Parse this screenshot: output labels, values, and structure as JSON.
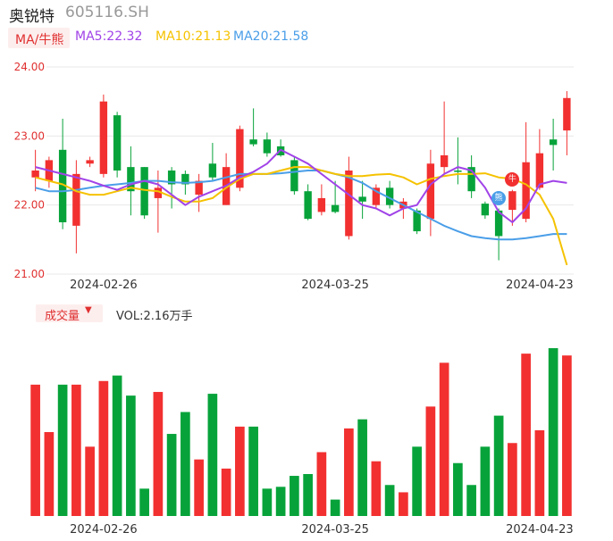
{
  "header": {
    "name": "奥锐特",
    "code": "605116.SH"
  },
  "ma_legend": {
    "button_label": "MA/牛熊",
    "ma5": "MA5:22.32",
    "ma10": "MA10:21.13",
    "ma20": "MA20:21.58"
  },
  "volume_legend": {
    "button_label": "成交量",
    "arrow": "▼",
    "vol_text": "VOL:2.16万手"
  },
  "markers": {
    "bull": "牛",
    "bear": "熊"
  },
  "colors": {
    "up": "#f23030",
    "down": "#07a33a",
    "ma5": "#a143e8",
    "ma10": "#f5c200",
    "ma20": "#4a9ee8",
    "label": "#e03030",
    "grid": "#e8e8e8"
  },
  "chart_data": {
    "type": "candlestick",
    "price_axis": {
      "ticks": [
        21.0,
        22.0,
        23.0,
        24.0
      ],
      "labels": [
        "21.00",
        "22.00",
        "23.00",
        "24.00"
      ],
      "ylim": [
        21.0,
        24.0
      ]
    },
    "x_tick_labels": [
      {
        "index": 5,
        "label": "2024-02-26"
      },
      {
        "index": 22,
        "label": "2024-03-25"
      },
      {
        "index": 37,
        "label": "2024-04-23"
      }
    ],
    "candles": [
      {
        "o": 22.4,
        "c": 22.5,
        "h": 22.8,
        "l": 22.2
      },
      {
        "o": 22.35,
        "c": 22.65,
        "h": 22.7,
        "l": 22.25
      },
      {
        "o": 22.8,
        "c": 21.75,
        "h": 23.25,
        "l": 21.65
      },
      {
        "o": 21.7,
        "c": 22.45,
        "h": 22.65,
        "l": 21.3
      },
      {
        "o": 22.6,
        "c": 22.65,
        "h": 22.7,
        "l": 22.55
      },
      {
        "o": 22.45,
        "c": 23.5,
        "h": 23.6,
        "l": 22.4
      },
      {
        "o": 23.3,
        "c": 22.5,
        "h": 23.35,
        "l": 22.4
      },
      {
        "o": 22.55,
        "c": 22.2,
        "h": 22.85,
        "l": 21.85
      },
      {
        "o": 22.55,
        "c": 21.85,
        "h": 22.55,
        "l": 21.8
      },
      {
        "o": 22.1,
        "c": 22.25,
        "h": 22.5,
        "l": 21.6
      },
      {
        "o": 22.5,
        "c": 22.3,
        "h": 22.55,
        "l": 21.95
      },
      {
        "o": 22.45,
        "c": 22.3,
        "h": 22.5,
        "l": 22.15
      },
      {
        "o": 22.15,
        "c": 22.35,
        "h": 22.45,
        "l": 21.9
      },
      {
        "o": 22.6,
        "c": 22.4,
        "h": 22.9,
        "l": 22.35
      },
      {
        "o": 22.0,
        "c": 22.55,
        "h": 22.75,
        "l": 22.0
      },
      {
        "o": 22.25,
        "c": 23.1,
        "h": 23.15,
        "l": 22.2
      },
      {
        "o": 22.95,
        "c": 22.88,
        "h": 23.4,
        "l": 22.85
      },
      {
        "o": 22.95,
        "c": 22.75,
        "h": 23.05,
        "l": 22.7
      },
      {
        "o": 22.85,
        "c": 22.72,
        "h": 22.95,
        "l": 22.7
      },
      {
        "o": 22.65,
        "c": 22.2,
        "h": 22.7,
        "l": 22.15
      },
      {
        "o": 22.2,
        "c": 21.8,
        "h": 22.3,
        "l": 21.78
      },
      {
        "o": 21.9,
        "c": 22.1,
        "h": 22.3,
        "l": 21.85
      },
      {
        "o": 22.0,
        "c": 21.9,
        "h": 22.35,
        "l": 21.88
      },
      {
        "o": 21.55,
        "c": 22.5,
        "h": 22.7,
        "l": 21.5
      },
      {
        "o": 22.12,
        "c": 22.05,
        "h": 22.35,
        "l": 21.8
      },
      {
        "o": 22.0,
        "c": 22.25,
        "h": 22.3,
        "l": 21.95
      },
      {
        "o": 22.25,
        "c": 22.0,
        "h": 22.35,
        "l": 21.95
      },
      {
        "o": 21.95,
        "c": 22.05,
        "h": 22.1,
        "l": 21.8
      },
      {
        "o": 21.92,
        "c": 21.62,
        "h": 21.95,
        "l": 21.58
      },
      {
        "o": 21.8,
        "c": 22.6,
        "h": 22.8,
        "l": 21.55
      },
      {
        "o": 22.55,
        "c": 22.72,
        "h": 23.5,
        "l": 22.45
      },
      {
        "o": 22.5,
        "c": 22.48,
        "h": 22.98,
        "l": 22.3
      },
      {
        "o": 22.55,
        "c": 22.2,
        "h": 22.72,
        "l": 22.1
      },
      {
        "o": 22.02,
        "c": 21.85,
        "h": 22.05,
        "l": 21.8
      },
      {
        "o": 21.92,
        "c": 21.55,
        "h": 21.95,
        "l": 21.2
      },
      {
        "o": 21.93,
        "c": 22.2,
        "h": 22.22,
        "l": 21.7
      },
      {
        "o": 21.8,
        "c": 22.62,
        "h": 23.2,
        "l": 21.75
      },
      {
        "o": 22.25,
        "c": 22.75,
        "h": 23.1,
        "l": 22.22
      },
      {
        "o": 22.95,
        "c": 22.87,
        "h": 23.25,
        "l": 22.5
      },
      {
        "o": 23.08,
        "c": 23.55,
        "h": 23.65,
        "l": 22.72
      }
    ],
    "ma5": [
      22.55,
      22.5,
      22.45,
      22.4,
      22.35,
      22.28,
      22.22,
      22.3,
      22.35,
      22.3,
      22.15,
      22.0,
      22.12,
      22.2,
      22.28,
      22.4,
      22.48,
      22.6,
      22.8,
      22.7,
      22.6,
      22.45,
      22.3,
      22.15,
      22.0,
      21.95,
      21.85,
      21.95,
      22.0,
      22.3,
      22.45,
      22.55,
      22.5,
      22.25,
      21.9,
      21.75,
      21.95,
      22.3,
      22.35,
      22.32
    ],
    "ma10": [
      22.4,
      22.35,
      22.3,
      22.2,
      22.15,
      22.15,
      22.2,
      22.25,
      22.22,
      22.2,
      22.12,
      22.05,
      22.05,
      22.1,
      22.25,
      22.38,
      22.45,
      22.45,
      22.5,
      22.55,
      22.55,
      22.5,
      22.45,
      22.42,
      22.42,
      22.44,
      22.45,
      22.4,
      22.3,
      22.38,
      22.42,
      22.45,
      22.45,
      22.46,
      22.4,
      22.38,
      22.3,
      22.15,
      21.8,
      21.13
    ],
    "ma20": [
      22.25,
      22.2,
      22.2,
      22.22,
      22.25,
      22.28,
      22.3,
      22.32,
      22.35,
      22.35,
      22.33,
      22.32,
      22.33,
      22.35,
      22.4,
      22.45,
      22.45,
      22.45,
      22.46,
      22.48,
      22.5,
      22.5,
      22.45,
      22.4,
      22.32,
      22.2,
      22.1,
      22.0,
      21.9,
      21.8,
      21.7,
      21.62,
      21.55,
      21.52,
      21.5,
      21.5,
      21.52,
      21.55,
      21.58,
      21.58
    ],
    "volume": [
      72,
      46,
      72,
      72,
      38,
      74,
      77,
      66,
      15,
      68,
      45,
      57,
      31,
      67,
      26,
      49,
      49,
      15,
      16,
      22,
      23,
      35,
      9,
      48,
      53,
      30,
      17,
      13,
      38,
      60,
      84,
      29,
      17,
      38,
      55,
      40,
      89,
      47,
      92,
      88
    ],
    "bull_marker_index": 35,
    "bear_marker_index": 34
  }
}
